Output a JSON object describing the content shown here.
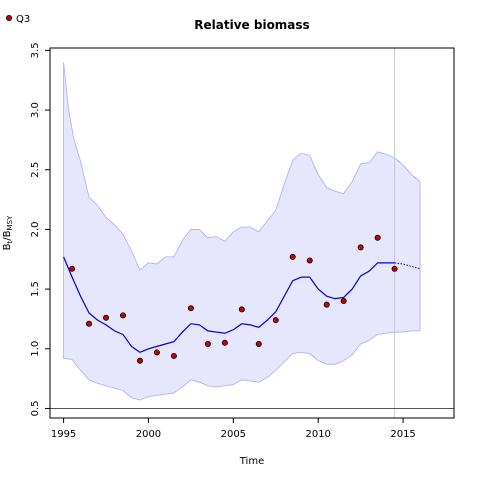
{
  "chart_data": {
    "type": "line",
    "title": "Relative biomass",
    "xlabel": "Time",
    "ylabel": "B_t/B_MSY",
    "ylabel_main": "B",
    "ylabel_sub1": "t",
    "ylabel_sep": "/B",
    "ylabel_sub2": "MSY",
    "xlim": [
      1994.2,
      2018.0
    ],
    "ylim": [
      0.42,
      3.52
    ],
    "x_ticks": [
      1995,
      2000,
      2005,
      2010,
      2015
    ],
    "x_tick_labels": [
      "1995",
      "2000",
      "2005",
      "2010",
      "2015"
    ],
    "y_ticks": [
      0.5,
      1.0,
      1.5,
      2.0,
      2.5,
      3.0,
      3.5
    ],
    "y_tick_labels": [
      "0.5",
      "1.0",
      "1.5",
      "2.0",
      "2.5",
      "3.0",
      "3.5"
    ],
    "reference_lines": {
      "horizontal_y": 0.5,
      "vertical_x": 2014.5
    },
    "colors": {
      "band_fill": "#e6e6ff",
      "band_edge": "#aaaaff",
      "estimate_line": "#0000dd",
      "points_fill": "#cc0000",
      "points_edge": "#000000",
      "ref_vertical": "#c8c8c8",
      "ref_horizontal": "#555555"
    },
    "legend": {
      "position": "top-left",
      "label": "Q3"
    },
    "series": [
      {
        "kind": "estimate",
        "x": [
          1995.0,
          1995.5,
          1996.0,
          1996.5,
          1997.0,
          1997.5,
          1998.0,
          1998.5,
          1999.0,
          1999.5,
          2000.0,
          2000.5,
          2001.0,
          2001.5,
          2002.0,
          2002.5,
          2003.0,
          2003.5,
          2004.0,
          2004.5,
          2005.0,
          2005.5,
          2006.0,
          2006.5,
          2007.0,
          2007.5,
          2008.0,
          2008.5,
          2009.0,
          2009.5,
          2010.0,
          2010.5,
          2011.0,
          2011.5,
          2012.0,
          2012.5,
          2013.0,
          2013.5,
          2014.0,
          2014.5
        ],
        "y": [
          1.77,
          1.6,
          1.44,
          1.3,
          1.24,
          1.2,
          1.15,
          1.12,
          1.02,
          0.97,
          1.0,
          1.02,
          1.04,
          1.06,
          1.14,
          1.21,
          1.2,
          1.15,
          1.14,
          1.13,
          1.16,
          1.21,
          1.2,
          1.18,
          1.24,
          1.31,
          1.44,
          1.57,
          1.6,
          1.6,
          1.5,
          1.44,
          1.42,
          1.43,
          1.5,
          1.61,
          1.65,
          1.72,
          1.72,
          1.72
        ]
      },
      {
        "kind": "forecast",
        "x": [
          2014.5,
          2015.0,
          2015.5,
          2016.0
        ],
        "y": [
          1.72,
          1.71,
          1.69,
          1.67
        ]
      },
      {
        "kind": "band_upper",
        "x": [
          1995.0,
          1995.3,
          1995.6,
          1996.0,
          1996.5,
          1997.0,
          1997.5,
          1998.0,
          1998.5,
          1999.0,
          1999.5,
          2000.0,
          2000.5,
          2001.0,
          2001.5,
          2002.0,
          2002.5,
          2003.0,
          2003.5,
          2004.0,
          2004.5,
          2005.0,
          2005.5,
          2006.0,
          2006.5,
          2007.0,
          2007.5,
          2008.0,
          2008.5,
          2009.0,
          2009.5,
          2010.0,
          2010.5,
          2011.0,
          2011.5,
          2012.0,
          2012.5,
          2013.0,
          2013.5,
          2014.0,
          2014.5,
          2015.0,
          2015.5,
          2016.0
        ],
        "y": [
          3.4,
          3.0,
          2.76,
          2.57,
          2.27,
          2.2,
          2.1,
          2.04,
          1.96,
          1.82,
          1.66,
          1.72,
          1.71,
          1.77,
          1.77,
          1.91,
          2.0,
          2.0,
          1.93,
          1.94,
          1.9,
          1.98,
          2.02,
          2.02,
          1.98,
          2.07,
          2.16,
          2.38,
          2.58,
          2.64,
          2.62,
          2.46,
          2.35,
          2.32,
          2.3,
          2.4,
          2.55,
          2.56,
          2.65,
          2.63,
          2.6,
          2.54,
          2.46,
          2.4
        ]
      },
      {
        "kind": "band_lower",
        "x": [
          1995.0,
          1995.5,
          1996.0,
          1996.5,
          1997.0,
          1997.5,
          1998.0,
          1998.5,
          1999.0,
          1999.5,
          2000.0,
          2000.5,
          2001.0,
          2001.5,
          2002.0,
          2002.5,
          2003.0,
          2003.5,
          2004.0,
          2004.5,
          2005.0,
          2005.5,
          2006.0,
          2006.5,
          2007.0,
          2007.5,
          2008.0,
          2008.5,
          2009.0,
          2009.5,
          2010.0,
          2010.5,
          2011.0,
          2011.5,
          2012.0,
          2012.5,
          2013.0,
          2013.5,
          2014.0,
          2014.5,
          2015.0,
          2015.5,
          2016.0
        ],
        "y": [
          0.92,
          0.91,
          0.82,
          0.74,
          0.71,
          0.69,
          0.67,
          0.65,
          0.59,
          0.57,
          0.6,
          0.61,
          0.62,
          0.63,
          0.68,
          0.74,
          0.72,
          0.69,
          0.68,
          0.69,
          0.7,
          0.74,
          0.73,
          0.72,
          0.76,
          0.82,
          0.89,
          0.96,
          0.97,
          0.96,
          0.9,
          0.87,
          0.87,
          0.9,
          0.95,
          1.04,
          1.07,
          1.12,
          1.13,
          1.14,
          1.14,
          1.15,
          1.15
        ]
      },
      {
        "kind": "observations",
        "name": "Q3",
        "x": [
          1995.5,
          1996.5,
          1997.5,
          1998.5,
          1999.5,
          2000.5,
          2001.5,
          2002.5,
          2003.5,
          2004.5,
          2005.5,
          2006.5,
          2007.5,
          2008.5,
          2009.5,
          2010.5,
          2011.5,
          2012.5,
          2013.5,
          2014.5
        ],
        "y": [
          1.67,
          1.21,
          1.26,
          1.28,
          0.9,
          0.97,
          0.94,
          1.34,
          1.04,
          1.05,
          1.33,
          1.04,
          1.24,
          1.77,
          1.74,
          1.37,
          1.4,
          1.85,
          1.93,
          1.67
        ]
      }
    ]
  }
}
